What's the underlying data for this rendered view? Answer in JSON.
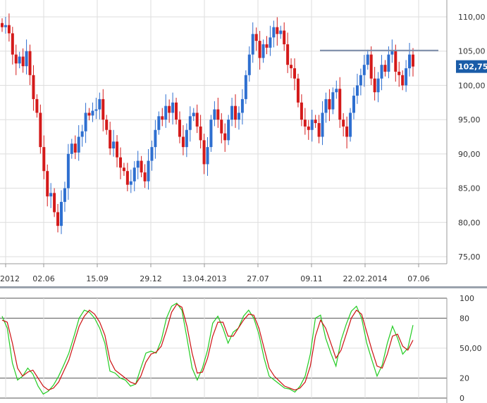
{
  "chart_data": [
    {
      "type": "candlestick",
      "ylim": [
        75,
        112
      ],
      "y_ticks": [
        "110,00",
        "105,00",
        "100,00",
        "95,00",
        "90,00",
        "85,00",
        "80,00",
        "75,00"
      ],
      "y_tick_values": [
        110,
        105,
        100,
        95,
        90,
        85,
        80,
        75
      ],
      "x_ticks": [
        "2012",
        "02.06",
        "15.09",
        "29.12",
        "13.04.2013",
        "27.07",
        "09.11",
        "22.02.2014",
        "07.06"
      ],
      "last_price_label": "102,75",
      "last_price": 102.75,
      "resistance_level": 105.1,
      "grid": true,
      "colors": {
        "up": "#2e6fd0",
        "down": "#d41a1a",
        "grid": "#dddddd",
        "resistance": "#7a8aa8",
        "last_box": "#1a5ca8",
        "axis": "#999999"
      },
      "candles_close": [
        108.5,
        108.8,
        107.6,
        104.5,
        103.2,
        104.2,
        102.8,
        105.0,
        101.5,
        98.0,
        96.0,
        91.0,
        87.5,
        83.8,
        84.3,
        81.5,
        79.5,
        83.0,
        85.0,
        90.0,
        91.5,
        90.2,
        92.5,
        93.3,
        96.0,
        95.6,
        96.3,
        96.5,
        98.0,
        95.0,
        93.5,
        90.8,
        91.8,
        89.5,
        88.0,
        87.5,
        85.5,
        86.0,
        88.0,
        89.0,
        87.3,
        86.0,
        89.0,
        91.0,
        93.5,
        95.5,
        95.0,
        97.0,
        96.0,
        97.5,
        95.0,
        92.5,
        91.0,
        93.5,
        95.5,
        96.0,
        94.0,
        92.0,
        88.5,
        91.0,
        95.0,
        96.5,
        95.0,
        93.0,
        92.0,
        95.0,
        97.0,
        95.0,
        96.0,
        98.0,
        101.5,
        104.5,
        107.5,
        106.5,
        104.0,
        106.0,
        105.5,
        107.0,
        108.5,
        107.5,
        108.0,
        106.0,
        103.0,
        102.5,
        101.0,
        97.5,
        95.0,
        94.0,
        93.5,
        95.0,
        94.5,
        92.5,
        96.0,
        98.0,
        96.5,
        99.0,
        99.5,
        95.0,
        94.0,
        92.5,
        96.0,
        98.5,
        100.0,
        101.5,
        103.0,
        104.5,
        101.0,
        99.0,
        101.0,
        103.0,
        102.0,
        104.5,
        105.0,
        102.0,
        101.5,
        100.0,
        102.5,
        104.5,
        102.75
      ]
    },
    {
      "type": "line",
      "ylim": [
        0,
        100
      ],
      "y_ticks": [
        "100",
        "80",
        "50,00",
        "20",
        "0"
      ],
      "y_tick_values": [
        100,
        80,
        50,
        20,
        0
      ],
      "grid": true,
      "series": [
        {
          "color": "#22cc22",
          "values": [
            82,
            70,
            35,
            18,
            22,
            30,
            24,
            12,
            4,
            7,
            13,
            22,
            33,
            45,
            62,
            80,
            88,
            86,
            80,
            70,
            55,
            27,
            25,
            20,
            18,
            12,
            14,
            30,
            45,
            47,
            45,
            58,
            80,
            92,
            95,
            88,
            60,
            30,
            18,
            30,
            48,
            75,
            82,
            70,
            55,
            66,
            70,
            82,
            88,
            80,
            64,
            40,
            22,
            18,
            14,
            10,
            9,
            6,
            12,
            22,
            44,
            80,
            83,
            60,
            45,
            32,
            58,
            74,
            87,
            92,
            80,
            55,
            38,
            22,
            33,
            55,
            72,
            60,
            44,
            50,
            73
          ]
        },
        {
          "color": "#cc1111",
          "values": [
            78,
            76,
            55,
            30,
            22,
            26,
            28,
            20,
            12,
            8,
            10,
            16,
            27,
            38,
            55,
            72,
            82,
            88,
            84,
            76,
            63,
            38,
            28,
            24,
            20,
            16,
            14,
            22,
            36,
            44,
            46,
            52,
            68,
            86,
            94,
            91,
            72,
            45,
            25,
            26,
            40,
            62,
            76,
            76,
            62,
            62,
            70,
            78,
            84,
            83,
            70,
            50,
            30,
            22,
            17,
            12,
            10,
            8,
            10,
            16,
            32,
            62,
            78,
            70,
            55,
            40,
            48,
            64,
            80,
            88,
            84,
            66,
            48,
            32,
            30,
            44,
            62,
            64,
            52,
            48,
            58
          ]
        }
      ]
    }
  ]
}
